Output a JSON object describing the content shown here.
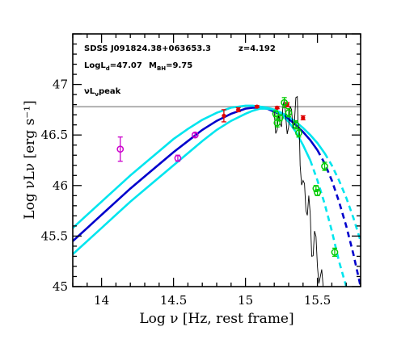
{
  "chart_data": {
    "type": "line",
    "title": "",
    "xlabel": "Log ν [Hz, rest frame]",
    "ylabel": "Log νLν [erg s⁻¹]",
    "xlim": [
      13.8,
      15.8
    ],
    "ylim": [
      45,
      47.5
    ],
    "x_ticks": [
      "14",
      "14.5",
      "15",
      "15.5"
    ],
    "y_ticks": [
      "45",
      "45.5",
      "46",
      "46.5",
      "47"
    ],
    "annotations": {
      "source_name": "SDSS J091824.38+063653.3",
      "redshift": "z=4.192",
      "logld": "LogL",
      "logld_sub": "d",
      "logld_val": "=47.07",
      "mbh": "M",
      "mbh_sub": "BH",
      "mbh_val": "=9.75",
      "peak_label": "νL",
      "peak_sub": "ν",
      "peak_tail": "peak"
    },
    "peak_level": 46.78,
    "colors": {
      "disk_model": "#0000cc",
      "disk_bounds": "#00e5ee",
      "peak_line": "#b0b0b0",
      "photometry_magenta": "#cc00cc",
      "photometry_red": "#dd0000",
      "photometry_green": "#00cc00",
      "spectrum": "#000000"
    },
    "series": [
      {
        "style": "solid",
        "color": "disk_model",
        "x": [
          13.8,
          13.9,
          14.0,
          14.1,
          14.2,
          14.3,
          14.4,
          14.5,
          14.6,
          14.7,
          14.8,
          14.9,
          15.0,
          15.05,
          15.1,
          15.15,
          15.2,
          15.25,
          15.3,
          15.35,
          15.4,
          15.45,
          15.5
        ],
        "y": [
          45.45,
          45.58,
          45.71,
          45.84,
          45.97,
          46.09,
          46.21,
          46.33,
          46.44,
          46.55,
          46.64,
          46.71,
          46.76,
          46.77,
          46.77,
          46.76,
          46.73,
          46.7,
          46.66,
          46.6,
          46.53,
          46.45,
          46.35
        ]
      },
      {
        "style": "dashed",
        "color": "disk_model",
        "x": [
          15.5,
          15.55,
          15.6,
          15.65,
          15.7,
          15.75,
          15.8
        ],
        "y": [
          46.35,
          46.22,
          46.05,
          45.84,
          45.6,
          45.32,
          45.0
        ]
      },
      {
        "style": "solid",
        "color": "disk_bounds",
        "x": [
          13.8,
          13.9,
          14.0,
          14.1,
          14.2,
          14.3,
          14.4,
          14.5,
          14.6,
          14.7,
          14.8,
          14.9,
          15.0,
          15.05,
          15.1,
          15.15,
          15.2,
          15.25,
          15.3,
          15.35,
          15.4,
          15.45,
          15.5,
          15.55
        ],
        "y": [
          45.58,
          45.71,
          45.84,
          45.97,
          46.1,
          46.22,
          46.34,
          46.46,
          46.56,
          46.65,
          46.72,
          46.77,
          46.79,
          46.79,
          46.78,
          46.77,
          46.75,
          46.72,
          46.68,
          46.63,
          46.57,
          46.5,
          46.42,
          46.32
        ]
      },
      {
        "style": "dashed",
        "color": "disk_bounds",
        "x": [
          15.55,
          15.6,
          15.65,
          15.7,
          15.75,
          15.8
        ],
        "y": [
          46.32,
          46.2,
          46.05,
          45.88,
          45.68,
          45.45
        ]
      },
      {
        "style": "solid",
        "color": "disk_bounds",
        "x": [
          13.8,
          13.9,
          14.0,
          14.1,
          14.2,
          14.3,
          14.4,
          14.5,
          14.6,
          14.7,
          14.8,
          14.9,
          15.0,
          15.05,
          15.1,
          15.15,
          15.2,
          15.25,
          15.3,
          15.35,
          15.4,
          15.45
        ],
        "y": [
          45.32,
          45.45,
          45.58,
          45.71,
          45.84,
          45.96,
          46.08,
          46.2,
          46.32,
          46.44,
          46.55,
          46.64,
          46.71,
          46.74,
          46.76,
          46.76,
          46.75,
          46.7,
          46.63,
          46.53,
          46.4,
          46.25
        ]
      },
      {
        "style": "dashed",
        "color": "disk_bounds",
        "x": [
          15.45,
          15.5,
          15.55,
          15.6,
          15.65,
          15.7
        ],
        "y": [
          46.25,
          46.05,
          45.82,
          45.55,
          45.25,
          45.0
        ]
      }
    ],
    "points": [
      {
        "color": "photometry_magenta",
        "marker": "circle",
        "x": 14.13,
        "y": 46.36,
        "err": 0.12
      },
      {
        "color": "photometry_magenta",
        "marker": "circle",
        "x": 14.53,
        "y": 46.27,
        "err": 0.03
      },
      {
        "color": "photometry_magenta",
        "marker": "circle",
        "x": 14.65,
        "y": 46.5,
        "err": 0.02
      },
      {
        "color": "photometry_red",
        "marker": "dot",
        "x": 14.85,
        "y": 46.69,
        "err": 0.06
      },
      {
        "color": "photometry_red",
        "marker": "dot",
        "x": 14.95,
        "y": 46.75,
        "err": 0.02
      },
      {
        "color": "photometry_red",
        "marker": "dot",
        "x": 15.08,
        "y": 46.78,
        "err": 0.01
      },
      {
        "color": "photometry_red",
        "marker": "dot",
        "x": 15.22,
        "y": 46.77,
        "err": 0.01
      },
      {
        "color": "photometry_red",
        "marker": "dot",
        "x": 15.29,
        "y": 46.8,
        "err": 0.02
      },
      {
        "color": "photometry_red",
        "marker": "dot",
        "x": 15.4,
        "y": 46.67,
        "err": 0.02
      },
      {
        "color": "photometry_green",
        "marker": "circle",
        "x": 15.21,
        "y": 46.71,
        "err": 0.03
      },
      {
        "color": "photometry_green",
        "marker": "circle",
        "x": 15.22,
        "y": 46.62,
        "err": 0.04
      },
      {
        "color": "photometry_green",
        "marker": "circle",
        "x": 15.24,
        "y": 46.67,
        "err": 0.03
      },
      {
        "color": "photometry_green",
        "marker": "circle",
        "x": 15.27,
        "y": 46.82,
        "err": 0.05
      },
      {
        "color": "photometry_green",
        "marker": "circle",
        "x": 15.3,
        "y": 46.72,
        "err": 0.04
      },
      {
        "color": "photometry_green",
        "marker": "circle",
        "x": 15.35,
        "y": 46.6,
        "err": 0.04
      },
      {
        "color": "photometry_green",
        "marker": "circle",
        "x": 15.37,
        "y": 46.52,
        "err": 0.04
      },
      {
        "color": "photometry_green",
        "marker": "circle",
        "x": 15.49,
        "y": 45.97,
        "err": 0.03
      },
      {
        "color": "photometry_green",
        "marker": "circle",
        "x": 15.5,
        "y": 45.93,
        "err": 0.03
      },
      {
        "color": "photometry_green",
        "marker": "circle",
        "x": 15.55,
        "y": 46.19,
        "err": 0.04
      },
      {
        "color": "photometry_green",
        "marker": "circle",
        "x": 15.62,
        "y": 45.34,
        "err": 0.04
      }
    ],
    "spectrum": {
      "x": [
        15.2,
        15.22,
        15.24,
        15.26,
        15.28,
        15.3,
        15.32,
        15.34,
        15.36,
        15.37,
        15.38,
        15.4,
        15.42,
        15.44,
        15.46,
        15.48,
        15.5,
        15.52,
        15.54
      ],
      "y": [
        46.72,
        46.55,
        46.62,
        46.78,
        46.68,
        46.58,
        46.75,
        46.62,
        46.88,
        46.6,
        46.2,
        46.05,
        45.75,
        45.9,
        45.3,
        45.55,
        45.2,
        45.1,
        45.0
      ]
    }
  }
}
